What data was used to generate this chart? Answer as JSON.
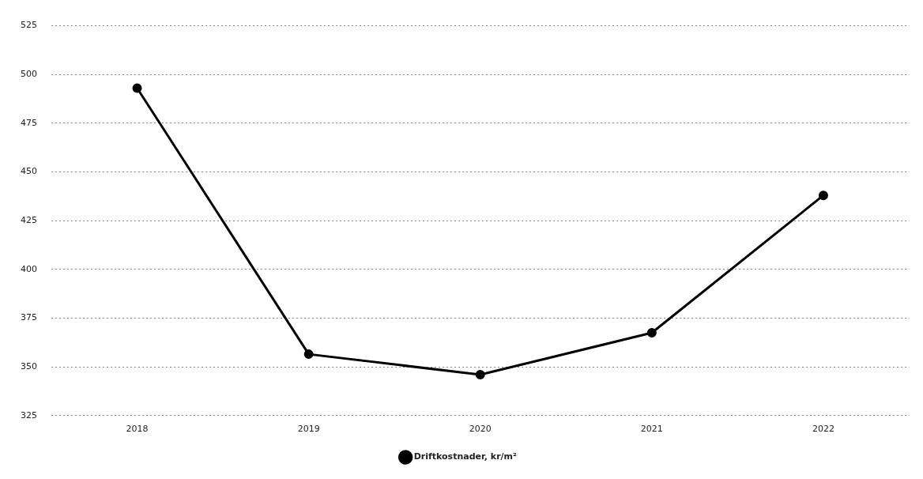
{
  "chart_data": {
    "type": "line",
    "categories": [
      "2018",
      "2019",
      "2020",
      "2021",
      "2022"
    ],
    "series": [
      {
        "name": "Driftkostnader, kr/m²",
        "color": "#000000",
        "values": [
          493,
          356.5,
          346,
          367.5,
          438
        ]
      }
    ],
    "ylim": [
      325,
      525
    ],
    "yticks": [
      325,
      350,
      375,
      400,
      425,
      450,
      475,
      500,
      525
    ],
    "grid": "y",
    "legend": "bottom",
    "marker": "circle",
    "line_style": "solid"
  }
}
